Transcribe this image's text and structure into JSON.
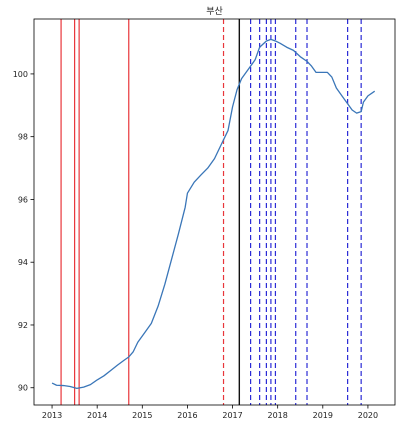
{
  "chart_data": {
    "type": "line",
    "title": "부산",
    "xlabel": "",
    "ylabel": "",
    "xlim": [
      2012.6,
      2020.6
    ],
    "ylim": [
      89.45,
      101.75
    ],
    "x_ticks": [
      2013,
      2014,
      2015,
      2016,
      2017,
      2018,
      2019,
      2020
    ],
    "x_tick_labels": [
      "2013",
      "2014",
      "2015",
      "2016",
      "2017",
      "2018",
      "2019",
      "2020"
    ],
    "y_ticks": [
      90,
      92,
      94,
      96,
      98,
      100
    ],
    "y_tick_labels": [
      "90",
      "92",
      "94",
      "96",
      "98",
      "100"
    ],
    "grid": false,
    "legend": "none",
    "series": [
      {
        "color": "#3a76b8",
        "points": [
          [
            2013.0,
            90.15
          ],
          [
            2013.1,
            90.08
          ],
          [
            2013.25,
            90.07
          ],
          [
            2013.4,
            90.04
          ],
          [
            2013.55,
            89.98
          ],
          [
            2013.7,
            90.02
          ],
          [
            2013.85,
            90.1
          ],
          [
            2014.0,
            90.25
          ],
          [
            2014.15,
            90.38
          ],
          [
            2014.3,
            90.55
          ],
          [
            2014.45,
            90.72
          ],
          [
            2014.6,
            90.88
          ],
          [
            2014.7,
            90.98
          ],
          [
            2014.8,
            91.15
          ],
          [
            2014.9,
            91.45
          ],
          [
            2015.05,
            91.75
          ],
          [
            2015.2,
            92.05
          ],
          [
            2015.35,
            92.6
          ],
          [
            2015.5,
            93.3
          ],
          [
            2015.65,
            94.1
          ],
          [
            2015.8,
            94.9
          ],
          [
            2015.95,
            95.75
          ],
          [
            2016.0,
            96.2
          ],
          [
            2016.15,
            96.55
          ],
          [
            2016.3,
            96.78
          ],
          [
            2016.45,
            97.0
          ],
          [
            2016.6,
            97.3
          ],
          [
            2016.75,
            97.75
          ],
          [
            2016.9,
            98.2
          ],
          [
            2017.0,
            98.95
          ],
          [
            2017.1,
            99.5
          ],
          [
            2017.2,
            99.85
          ],
          [
            2017.35,
            100.15
          ],
          [
            2017.5,
            100.45
          ],
          [
            2017.6,
            100.85
          ],
          [
            2017.75,
            101.05
          ],
          [
            2017.85,
            101.1
          ],
          [
            2017.95,
            101.05
          ],
          [
            2018.05,
            100.98
          ],
          [
            2018.2,
            100.85
          ],
          [
            2018.35,
            100.75
          ],
          [
            2018.5,
            100.55
          ],
          [
            2018.65,
            100.4
          ],
          [
            2018.75,
            100.25
          ],
          [
            2018.85,
            100.05
          ],
          [
            2019.0,
            100.05
          ],
          [
            2019.1,
            100.05
          ],
          [
            2019.2,
            99.9
          ],
          [
            2019.3,
            99.55
          ],
          [
            2019.45,
            99.25
          ],
          [
            2019.55,
            99.05
          ],
          [
            2019.65,
            98.85
          ],
          [
            2019.75,
            98.75
          ],
          [
            2019.85,
            98.8
          ],
          [
            2019.9,
            99.1
          ],
          [
            2020.0,
            99.3
          ],
          [
            2020.15,
            99.45
          ]
        ]
      }
    ],
    "vertical_lines": [
      {
        "x": 2013.2,
        "color": "#e8363b",
        "style": "solid"
      },
      {
        "x": 2013.5,
        "color": "#e8363b",
        "style": "solid"
      },
      {
        "x": 2013.6,
        "color": "#e8363b",
        "style": "solid"
      },
      {
        "x": 2014.7,
        "color": "#e8363b",
        "style": "solid"
      },
      {
        "x": 2016.8,
        "color": "#e8363b",
        "style": "dashed"
      },
      {
        "x": 2017.15,
        "color": "#111111",
        "style": "solid"
      },
      {
        "x": 2017.4,
        "color": "#2b2bd6",
        "style": "dashed"
      },
      {
        "x": 2017.6,
        "color": "#2b2bd6",
        "style": "dashed"
      },
      {
        "x": 2017.75,
        "color": "#2b2bd6",
        "style": "dashed"
      },
      {
        "x": 2017.85,
        "color": "#2b2bd6",
        "style": "dashed"
      },
      {
        "x": 2017.95,
        "color": "#2b2bd6",
        "style": "dashed"
      },
      {
        "x": 2018.4,
        "color": "#2b2bd6",
        "style": "dashed"
      },
      {
        "x": 2018.65,
        "color": "#2b2bd6",
        "style": "dashed"
      },
      {
        "x": 2019.55,
        "color": "#2b2bd6",
        "style": "dashed"
      },
      {
        "x": 2019.85,
        "color": "#2b2bd6",
        "style": "dashed"
      }
    ]
  }
}
